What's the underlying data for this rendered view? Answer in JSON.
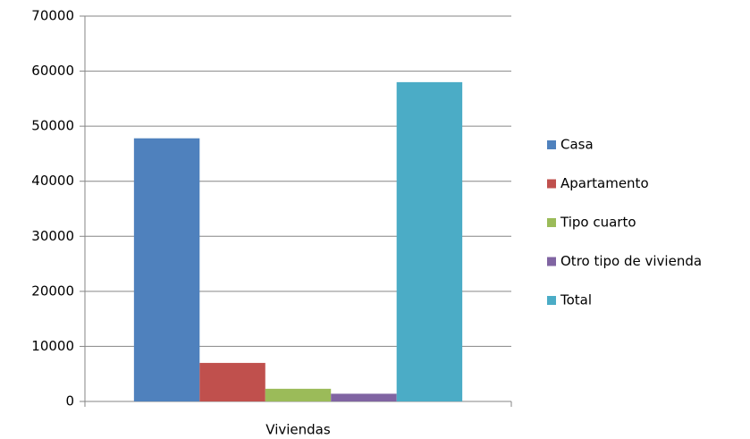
{
  "chart_data": {
    "type": "bar",
    "categories": [
      "Viviendas"
    ],
    "series": [
      {
        "name": "Casa",
        "color": "#4f81bd",
        "values": [
          47800
        ]
      },
      {
        "name": "Apartamento",
        "color": "#c0504d",
        "values": [
          7000
        ]
      },
      {
        "name": "Tipo cuarto",
        "color": "#9bbb59",
        "values": [
          2300
        ]
      },
      {
        "name": "Otro tipo de vivienda",
        "color": "#8064a2",
        "values": [
          1400
        ]
      },
      {
        "name": "Total",
        "color": "#4bacc6",
        "values": [
          58000
        ]
      }
    ],
    "ylim": [
      0,
      70000
    ],
    "yticks": [
      0,
      10000,
      20000,
      30000,
      40000,
      50000,
      60000,
      70000
    ],
    "grid": true,
    "legend": "right"
  }
}
